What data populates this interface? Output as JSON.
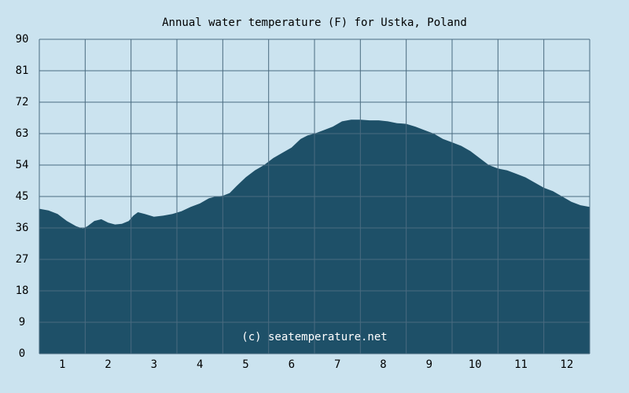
{
  "chart_data": {
    "type": "area",
    "title": "Annual water temperature (F) for Ustka, Poland",
    "xlabel": "",
    "ylabel": "",
    "ylim": [
      0,
      90
    ],
    "xlim": [
      0.5,
      12.5
    ],
    "grid": true,
    "y_ticks": [
      "0",
      "9",
      "18",
      "27",
      "36",
      "45",
      "54",
      "63",
      "72",
      "81",
      "90"
    ],
    "x_ticks": [
      "1",
      "2",
      "3",
      "4",
      "5",
      "6",
      "7",
      "8",
      "9",
      "10",
      "11",
      "12"
    ],
    "watermark": "(c) seatemperature.net",
    "colors": {
      "background": "#cbe3ef",
      "fill": "#1e5068",
      "grid": "#4a6b80",
      "watermark": "#ffffff"
    },
    "series": [
      {
        "x": [
          0.5,
          0.7,
          0.9,
          1.0,
          1.1,
          1.3,
          1.45,
          1.55,
          1.7,
          1.85,
          2.0,
          2.15,
          2.3,
          2.45,
          2.55,
          2.65,
          2.8,
          3.0,
          3.2,
          3.4,
          3.6,
          3.8,
          4.0,
          4.2,
          4.35,
          4.5,
          4.65,
          4.8,
          5.0,
          5.2,
          5.4,
          5.6,
          5.8,
          6.0,
          6.2,
          6.35,
          6.5,
          6.7,
          6.9,
          7.1,
          7.3,
          7.5,
          7.7,
          7.9,
          8.1,
          8.3,
          8.5,
          8.7,
          8.9,
          9.1,
          9.3,
          9.5,
          9.7,
          9.9,
          10.1,
          10.3,
          10.5,
          10.7,
          10.9,
          11.1,
          11.3,
          11.5,
          11.7,
          11.9,
          12.1,
          12.3,
          12.5
        ],
        "values": [
          41.5,
          41.0,
          40.0,
          39.0,
          38.0,
          36.5,
          35.8,
          36.5,
          38.0,
          38.5,
          37.5,
          37.0,
          37.2,
          38.0,
          39.5,
          40.5,
          40.0,
          39.2,
          39.5,
          40.0,
          40.8,
          42.0,
          43.0,
          44.5,
          45.0,
          45.2,
          46.0,
          48.0,
          50.5,
          52.5,
          54.0,
          56.0,
          57.5,
          59.0,
          61.5,
          62.5,
          63.0,
          64.0,
          65.0,
          66.5,
          67.0,
          67.0,
          66.8,
          66.8,
          66.5,
          66.0,
          65.8,
          65.0,
          64.0,
          63.0,
          61.5,
          60.5,
          59.5,
          58.0,
          56.0,
          54.0,
          53.0,
          52.5,
          51.5,
          50.5,
          49.0,
          47.5,
          46.5,
          45.0,
          43.5,
          42.5,
          42.0
        ]
      }
    ]
  }
}
